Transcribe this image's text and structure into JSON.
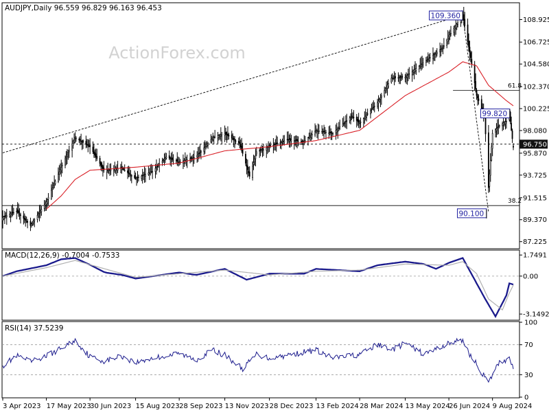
{
  "watermark": "ActionForex.com",
  "colors": {
    "background": "#ffffff",
    "frame": "#000000",
    "price": "#000000",
    "ma": "#d92027",
    "macd": "#1a1a8c",
    "signal": "#b0b0b0",
    "rsi": "#1a1a8c",
    "label_box": "#1f1fa0",
    "current_price_bg": "#111111",
    "watermark": "#d2d2d2"
  },
  "chart_data": [
    {
      "type": "candlestick",
      "symbol_header": "AUDJPY,Daily  96.559 96.829 96.163 96.453",
      "price_ticks": [
        "108.925",
        "106.725",
        "104.580",
        "102.370",
        "100.225",
        "98.080",
        "95.870",
        "93.725",
        "91.515",
        "89.370",
        "87.225"
      ],
      "ylim": [
        86.6,
        110.5
      ],
      "x_tick_labels": [
        "3 Apr 2023",
        "17 May 2023",
        "30 Jun 2023",
        "15 Aug 2023",
        "28 Sep 2023",
        "13 Nov 2023",
        "28 Dec 2023",
        "13 Feb 2024",
        "28 Mar 2024",
        "13 May 2024",
        "26 Jun 2024",
        "9 Aug 2024"
      ],
      "current_price": "96.750",
      "annotations": {
        "high_label": "109.360",
        "high_value": 109.36,
        "low_label": "90.100",
        "low_value": 90.1,
        "swing_label": "99.820",
        "swing_value": 99.82,
        "fib_618_label": "61.8",
        "fib_618_value": 102.0,
        "fib_382_label": "38.2",
        "fib_382_value": 90.75,
        "support_value": 90.75,
        "dashed_level": 96.75
      },
      "trendline": {
        "from": {
          "x": "3 Apr 2023",
          "y": 95.9
        },
        "to": {
          "x": "10 Jul 2024",
          "y": 109.36
        }
      },
      "drop_line": {
        "from": {
          "x": "10 Jul 2024",
          "y": 109.36
        },
        "to": {
          "x": "5 Aug 2024",
          "y": 90.1
        }
      },
      "price_anchors": [
        [
          "3 Apr 2023",
          89.6
        ],
        [
          "17 Apr 2023",
          90.2
        ],
        [
          "1 May 2023",
          88.8
        ],
        [
          "17 May 2023",
          91.1
        ],
        [
          "1 Jun 2023",
          94.5
        ],
        [
          "15 Jun 2023",
          97.4
        ],
        [
          "30 Jun 2023",
          96.5
        ],
        [
          "14 Jul 2023",
          94.2
        ],
        [
          "1 Aug 2023",
          94.4
        ],
        [
          "15 Aug 2023",
          93.4
        ],
        [
          "1 Sep 2023",
          94.1
        ],
        [
          "15 Sep 2023",
          95.5
        ],
        [
          "28 Sep 2023",
          95.0
        ],
        [
          "15 Oct 2023",
          95.5
        ],
        [
          "1 Nov 2023",
          97.4
        ],
        [
          "13 Nov 2023",
          97.8
        ],
        [
          "28 Nov 2023",
          96.8
        ],
        [
          "8 Dec 2023",
          93.6
        ],
        [
          "15 Dec 2023",
          96.0
        ],
        [
          "28 Dec 2023",
          96.5
        ],
        [
          "15 Jan 2024",
          97.2
        ],
        [
          "1 Feb 2024",
          97.0
        ],
        [
          "13 Feb 2024",
          98.1
        ],
        [
          "1 Mar 2024",
          97.8
        ],
        [
          "20 Mar 2024",
          99.5
        ],
        [
          "28 Mar 2024",
          98.8
        ],
        [
          "15 Apr 2024",
          100.8
        ],
        [
          "29 Apr 2024",
          103.2
        ],
        [
          "13 May 2024",
          103.3
        ],
        [
          "30 May 2024",
          104.6
        ],
        [
          "20 Jun 2024",
          106.2
        ],
        [
          "26 Jun 2024",
          107.3
        ],
        [
          "10 Jul 2024",
          109.36
        ],
        [
          "18 Jul 2024",
          105.2
        ],
        [
          "24 Jul 2024",
          101.5
        ],
        [
          "1 Aug 2024",
          99.5
        ],
        [
          "5 Aug 2024",
          92.5
        ],
        [
          "9 Aug 2024",
          97.8
        ],
        [
          "15 Aug 2024",
          98.5
        ],
        [
          "23 Aug 2024",
          99.0
        ],
        [
          "26 Aug 2024",
          99.8
        ],
        [
          "30 Aug 2024",
          96.45
        ]
      ],
      "ma_anchors": [
        [
          "17 May 2023",
          90.4
        ],
        [
          "1 Jun 2023",
          91.7
        ],
        [
          "15 Jun 2023",
          93.3
        ],
        [
          "30 Jun 2023",
          94.2
        ],
        [
          "15 Aug 2023",
          94.5
        ],
        [
          "28 Sep 2023",
          94.9
        ],
        [
          "13 Nov 2023",
          96.1
        ],
        [
          "28 Dec 2023",
          96.5
        ],
        [
          "13 Feb 2024",
          97.1
        ],
        [
          "28 Mar 2024",
          98.1
        ],
        [
          "13 May 2024",
          101.5
        ],
        [
          "26 Jun 2024",
          103.8
        ],
        [
          "10 Jul 2024",
          104.8
        ],
        [
          "24 Jul 2024",
          104.4
        ],
        [
          "5 Aug 2024",
          102.5
        ],
        [
          "23 Aug 2024",
          101.0
        ],
        [
          "30 Aug 2024",
          100.5
        ]
      ]
    },
    {
      "type": "line",
      "title": "MACD(12,26,9) -0.7004 -0.7533",
      "ticks": [
        "1.7491",
        "0.00",
        "-3.1492"
      ],
      "ylim": [
        -3.6,
        2.1
      ],
      "series": [
        {
          "role": "macd",
          "anchors": [
            [
              "3 Apr 2023",
              0.0
            ],
            [
              "17 Apr 2023",
              0.4
            ],
            [
              "17 May 2023",
              0.9
            ],
            [
              "1 Jun 2023",
              1.4
            ],
            [
              "15 Jun 2023",
              1.5
            ],
            [
              "1 Jul 2023",
              0.9
            ],
            [
              "15 Jul 2023",
              0.3
            ],
            [
              "1 Aug 2023",
              0.1
            ],
            [
              "15 Aug 2023",
              -0.2
            ],
            [
              "28 Sep 2023",
              0.3
            ],
            [
              "15 Oct 2023",
              0.1
            ],
            [
              "13 Nov 2023",
              0.6
            ],
            [
              "5 Dec 2023",
              -0.3
            ],
            [
              "28 Dec 2023",
              0.2
            ],
            [
              "1 Feb 2024",
              0.2
            ],
            [
              "13 Feb 2024",
              0.6
            ],
            [
              "28 Mar 2024",
              0.4
            ],
            [
              "15 Apr 2024",
              0.9
            ],
            [
              "13 May 2024",
              1.2
            ],
            [
              "1 Jun 2024",
              1.0
            ],
            [
              "13 Jun 2024",
              0.6
            ],
            [
              "26 Jun 2024",
              1.1
            ],
            [
              "10 Jul 2024",
              1.5
            ],
            [
              "24 Jul 2024",
              -0.6
            ],
            [
              "1 Aug 2024",
              -1.8
            ],
            [
              "12 Aug 2024",
              -3.35
            ],
            [
              "23 Aug 2024",
              -1.6
            ],
            [
              "26 Aug 2024",
              -0.6
            ],
            [
              "30 Aug 2024",
              -0.7
            ]
          ]
        },
        {
          "role": "signal",
          "anchors": [
            [
              "3 Apr 2023",
              0.0
            ],
            [
              "17 May 2023",
              0.7
            ],
            [
              "15 Jun 2023",
              1.3
            ],
            [
              "15 Jul 2023",
              0.6
            ],
            [
              "15 Aug 2023",
              -0.1
            ],
            [
              "28 Sep 2023",
              0.2
            ],
            [
              "13 Nov 2023",
              0.5
            ],
            [
              "28 Dec 2023",
              0.1
            ],
            [
              "13 Feb 2024",
              0.4
            ],
            [
              "28 Mar 2024",
              0.5
            ],
            [
              "13 May 2024",
              1.0
            ],
            [
              "26 Jun 2024",
              0.9
            ],
            [
              "10 Jul 2024",
              1.2
            ],
            [
              "24 Jul 2024",
              0.2
            ],
            [
              "5 Aug 2024",
              -1.9
            ],
            [
              "19 Aug 2024",
              -2.8
            ],
            [
              "26 Aug 2024",
              -1.4
            ],
            [
              "30 Aug 2024",
              -0.75
            ]
          ]
        }
      ]
    },
    {
      "type": "line",
      "title": "RSI(14) 37.5239",
      "ticks": [
        "100",
        "70",
        "30",
        "0"
      ],
      "ylim": [
        0,
        100
      ],
      "levels": [
        70,
        30
      ],
      "series": [
        {
          "role": "rsi",
          "anchors": [
            [
              "3 Apr 2023",
              42
            ],
            [
              "17 Apr 2023",
              55
            ],
            [
              "1 May 2023",
              47
            ],
            [
              "17 May 2023",
              55
            ],
            [
              "1 Jun 2023",
              65
            ],
            [
              "15 Jun 2023",
              76
            ],
            [
              "30 Jun 2023",
              54
            ],
            [
              "15 Jul 2023",
              48
            ],
            [
              "1 Aug 2023",
              55
            ],
            [
              "15 Aug 2023",
              46
            ],
            [
              "1 Sep 2023",
              52
            ],
            [
              "28 Sep 2023",
              58
            ],
            [
              "15 Oct 2023",
              50
            ],
            [
              "1 Nov 2023",
              63
            ],
            [
              "13 Nov 2023",
              56
            ],
            [
              "1 Dec 2023",
              38
            ],
            [
              "15 Dec 2023",
              57
            ],
            [
              "28 Dec 2023",
              52
            ],
            [
              "15 Jan 2024",
              56
            ],
            [
              "13 Feb 2024",
              63
            ],
            [
              "1 Mar 2024",
              52
            ],
            [
              "28 Mar 2024",
              57
            ],
            [
              "15 Apr 2024",
              70
            ],
            [
              "1 May 2024",
              64
            ],
            [
              "13 May 2024",
              72
            ],
            [
              "1 Jun 2024",
              57
            ],
            [
              "26 Jun 2024",
              72
            ],
            [
              "10 Jul 2024",
              76
            ],
            [
              "18 Jul 2024",
              55
            ],
            [
              "26 Jul 2024",
              40
            ],
            [
              "5 Aug 2024",
              18
            ],
            [
              "9 Aug 2024",
              30
            ],
            [
              "15 Aug 2024",
              45
            ],
            [
              "23 Aug 2024",
              50
            ],
            [
              "26 Aug 2024",
              55
            ],
            [
              "30 Aug 2024",
              37.5
            ]
          ]
        }
      ]
    }
  ]
}
